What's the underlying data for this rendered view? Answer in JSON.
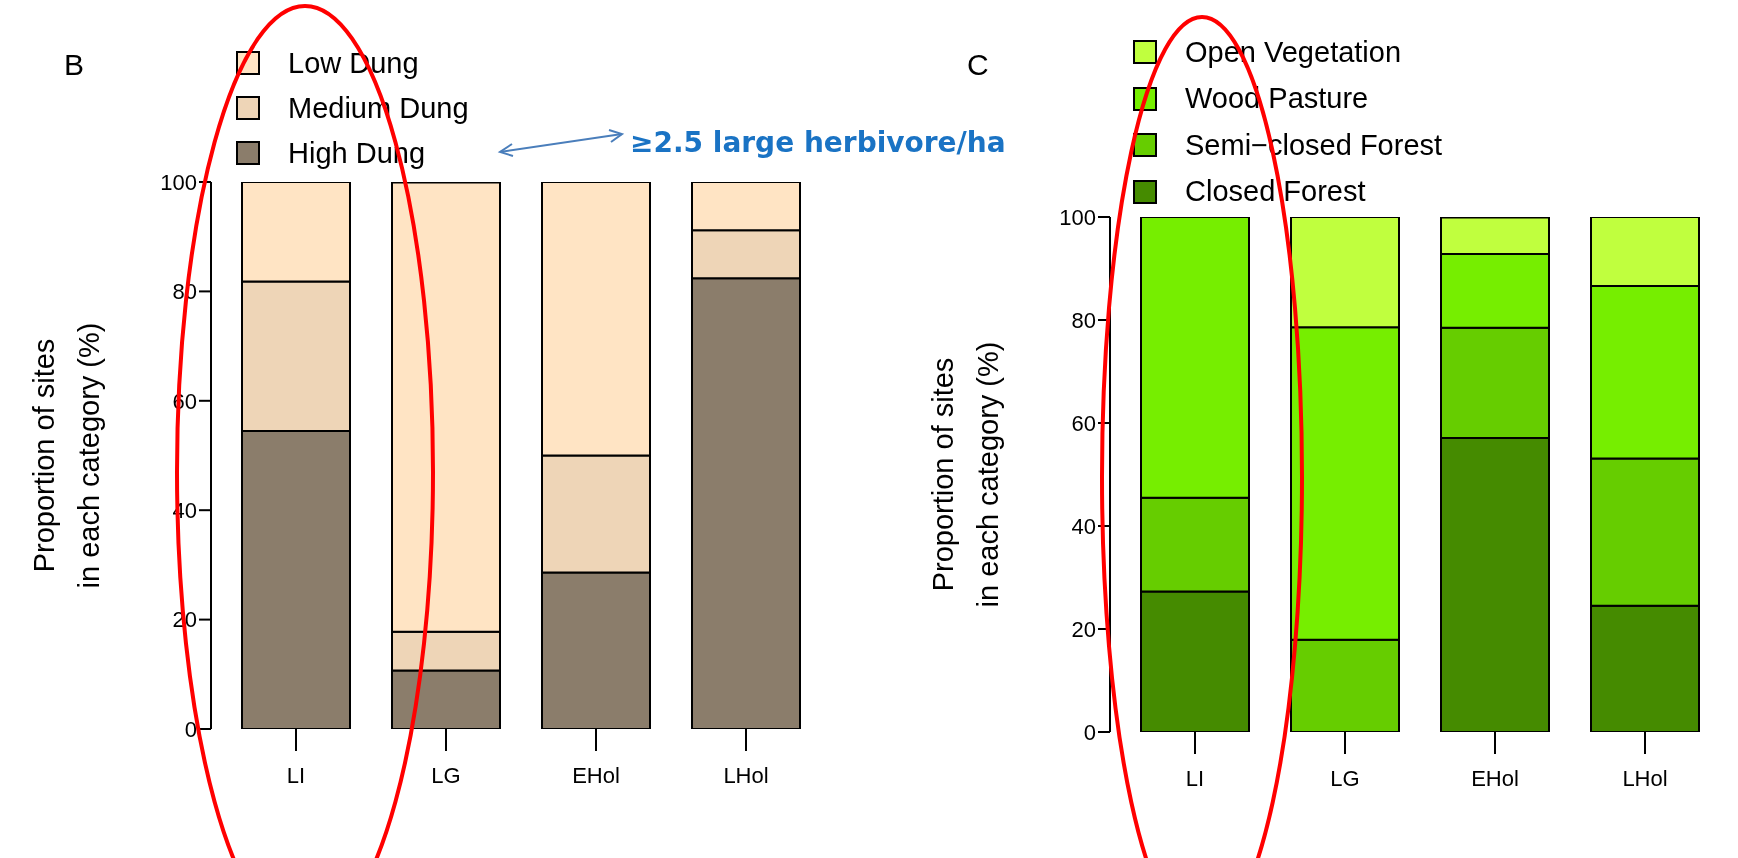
{
  "chart_data": [
    {
      "type": "bar",
      "title": "B",
      "categories": [
        "LI",
        "LG",
        "EHol",
        "LHol"
      ],
      "stacked": true,
      "ylabel": "Proportion of sites\nin each category (%)",
      "ylim": [
        0,
        100
      ],
      "yticks": [
        0,
        20,
        40,
        60,
        80,
        100
      ],
      "legend": "top left",
      "annotations": [
        "≥2.5 large herbivore/ha"
      ],
      "series": [
        {
          "name": "High Dung",
          "color": "#8b7d6b",
          "values": [
            54.5,
            10.7,
            28.6,
            82.4
          ]
        },
        {
          "name": "Medium Dung",
          "color": "#eed5b7",
          "values": [
            27.3,
            7.1,
            21.4,
            8.8
          ]
        },
        {
          "name": "Low Dung",
          "color": "#ffe4c4",
          "values": [
            18.2,
            82.1,
            50,
            8.8
          ]
        }
      ]
    },
    {
      "type": "bar",
      "title": "C",
      "categories": [
        "LI",
        "LG",
        "EHol",
        "LHol"
      ],
      "stacked": true,
      "ylabel": "Proportion of sites\nin each category (%)",
      "ylim": [
        0,
        100
      ],
      "yticks": [
        0,
        20,
        40,
        60,
        80,
        100
      ],
      "legend": "top left",
      "series": [
        {
          "name": "Closed Forest",
          "color": "#458b00",
          "values": [
            27.3,
            0,
            57.1,
            24.5
          ]
        },
        {
          "name": "Semi−closed Forest",
          "color": "#66cd00",
          "values": [
            18.2,
            17.9,
            21.4,
            28.6
          ]
        },
        {
          "name": "Wood Pasture",
          "color": "#76ee00",
          "values": [
            54.5,
            60.7,
            14.3,
            33.5
          ]
        },
        {
          "name": "Open Vegetation",
          "color": "#c0ff3e",
          "values": [
            0,
            21.4,
            7.1,
            13.4
          ]
        }
      ]
    }
  ]
}
